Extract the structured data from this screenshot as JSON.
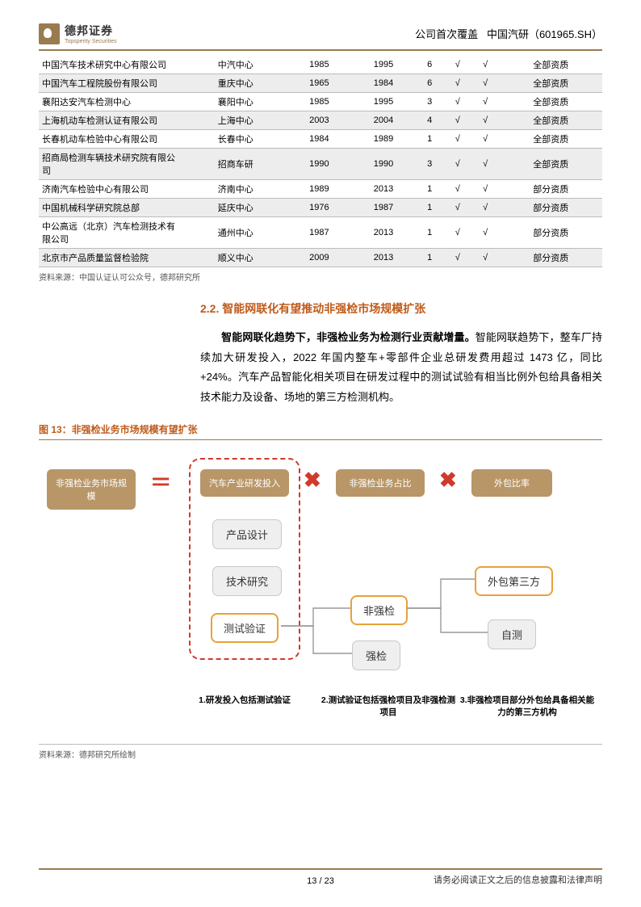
{
  "header": {
    "logo_name": "德邦证券",
    "logo_sub": "Topsperity Securities",
    "right_1": "公司首次覆盖",
    "right_2": "中国汽研（601965.SH）"
  },
  "table": {
    "rows": [
      {
        "c": [
          "中国汽车技术研究中心有限公司",
          "中汽中心",
          "1985",
          "1995",
          "6",
          "√",
          "√",
          "全部资质"
        ],
        "shade": false
      },
      {
        "c": [
          "中国汽车工程院股份有限公司",
          "重庆中心",
          "1965",
          "1984",
          "6",
          "√",
          "√",
          "全部资质"
        ],
        "shade": true
      },
      {
        "c": [
          "襄阳达安汽车检测中心",
          "襄阳中心",
          "1985",
          "1995",
          "3",
          "√",
          "√",
          "全部资质"
        ],
        "shade": false
      },
      {
        "c": [
          "上海机动车检测认证有限公司",
          "上海中心",
          "2003",
          "2004",
          "4",
          "√",
          "√",
          "全部资质"
        ],
        "shade": true
      },
      {
        "c": [
          "长春机动车检验中心有限公司",
          "长春中心",
          "1984",
          "1989",
          "1",
          "√",
          "√",
          "全部资质"
        ],
        "shade": false
      },
      {
        "c": [
          "招商局检测车辆技术研究院有限公司",
          "招商车研",
          "1990",
          "1990",
          "3",
          "√",
          "√",
          "全部资质"
        ],
        "shade": true
      },
      {
        "c": [
          "济南汽车检验中心有限公司",
          "济南中心",
          "1989",
          "2013",
          "1",
          "√",
          "√",
          "部分资质"
        ],
        "shade": false
      },
      {
        "c": [
          "中国机械科学研究院总部",
          "延庆中心",
          "1976",
          "1987",
          "1",
          "√",
          "√",
          "部分资质"
        ],
        "shade": true
      },
      {
        "c": [
          "中公高远（北京）汽车检测技术有限公司",
          "通州中心",
          "1987",
          "2013",
          "1",
          "√",
          "√",
          "部分资质"
        ],
        "shade": false
      },
      {
        "c": [
          "北京市产品质量监督检验院",
          "顺义中心",
          "2009",
          "2013",
          "1",
          "√",
          "√",
          "部分资质"
        ],
        "shade": true
      }
    ],
    "source": "资料来源：中国认证认可公众号，德邦研究所"
  },
  "section": {
    "title": "2.2. 智能网联化有望推动非强检市场规模扩张",
    "p1_b": "智能网联化趋势下，非强检业务为检测行业贡献增量。",
    "p1_r": "智能网联趋势下，整车厂持续加大研发投入，2022 年国内整车+零部件企业总研发费用超过 1473 亿，同比+24%。汽车产品智能化相关项目在研发过程中的测试试验有相当比例外包给具备相关技术能力及设备、场地的第三方检测机构。"
  },
  "figure": {
    "title": "图 13：非强检业务市场规模有望扩张",
    "eq1": "非强检业务市场规模",
    "eq2": "汽车产业研发投入",
    "eq3": "非强检业务占比",
    "eq4": "外包比率",
    "b_design": "产品设计",
    "b_tech": "技术研究",
    "b_test": "测试验证",
    "b_nonmand": "非强检",
    "b_mand": "强检",
    "b_out3p": "外包第三方",
    "b_self": "自测",
    "cap1": "1.研发投入包括测试验证",
    "cap2": "2.测试验证包括强检项目及非强检测项目",
    "cap3": "3.非强检项目部分外包给具备相关能力的第三方机构",
    "source": "资料来源：德邦研究所绘制",
    "colors": {
      "accent": "#9a7b4f",
      "orange": "#c05a1a",
      "red": "#d03a2a",
      "box_bg": "#efefef",
      "y_border": "#e8a13a"
    }
  },
  "footer": {
    "page": "13 / 23",
    "disclaimer": "请务必阅读正文之后的信息披露和法律声明"
  }
}
